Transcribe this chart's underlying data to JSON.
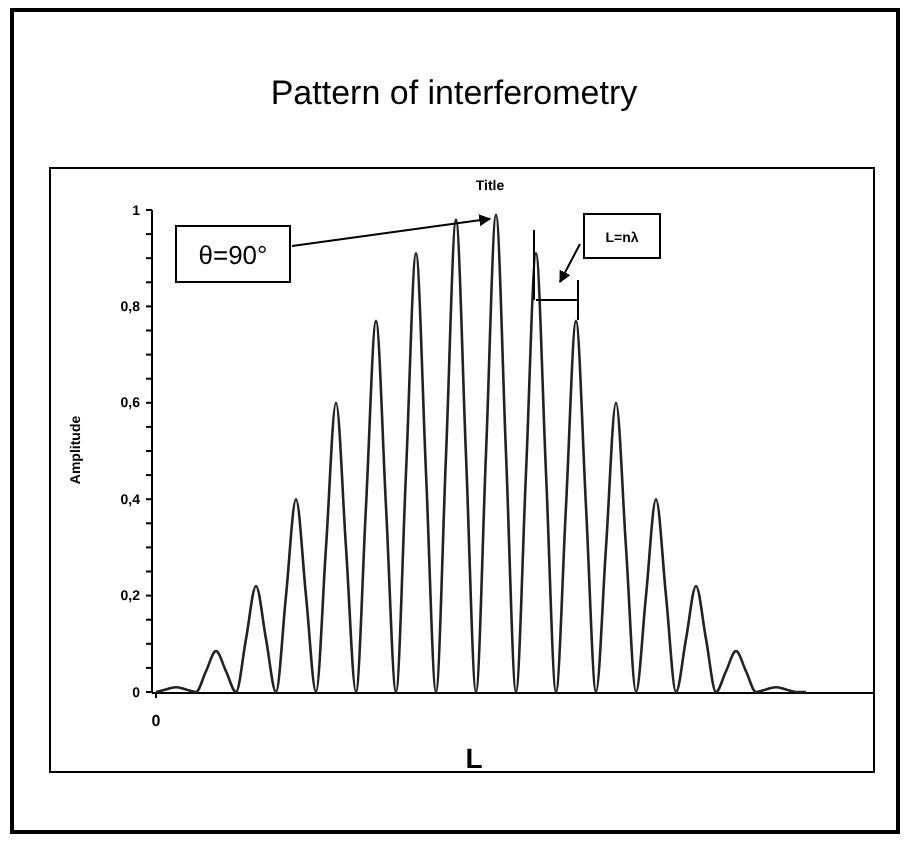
{
  "chart_data": {
    "type": "line",
    "title": "Pattern of interferometry",
    "subtitle": "Title",
    "xlabel": "L",
    "ylabel": "Amplitude",
    "annotations": [
      "θ=90°",
      "L=nλ"
    ],
    "categories": [
      "0",
      null,
      null,
      null,
      null,
      null,
      null,
      null,
      null,
      null,
      null,
      null,
      null,
      null,
      null,
      null,
      null,
      null,
      null,
      null,
      null,
      null,
      null,
      null,
      null,
      null,
      null,
      null,
      null,
      null,
      null,
      null,
      null,
      null,
      null,
      null,
      null,
      null,
      null,
      null,
      null,
      null,
      null,
      null,
      null,
      null,
      null,
      null,
      null,
      null,
      null,
      null,
      null,
      null,
      null,
      null,
      null,
      null,
      null,
      null,
      null,
      null,
      null,
      null,
      null,
      null,
      null,
      null,
      null,
      null,
      null,
      null,
      null
    ],
    "series": [
      {
        "color": "#222222",
        "values": [
          0,
          0.005,
          0.01,
          0.005,
          0,
          0.043,
          0.085,
          0.043,
          0,
          0.11,
          0.22,
          0.11,
          0,
          0.2,
          0.4,
          0.2,
          0,
          0.3,
          0.6,
          0.3,
          0,
          0.385,
          0.77,
          0.385,
          0,
          0.455,
          0.91,
          0.455,
          0,
          0.49,
          0.98,
          0.49,
          0,
          0.495,
          0.99,
          0.495,
          0,
          0.455,
          0.91,
          0.455,
          0,
          0.385,
          0.77,
          0.385,
          0,
          0.3,
          0.6,
          0.3,
          0,
          0.2,
          0.4,
          0.2,
          0,
          0.11,
          0.22,
          0.11,
          0,
          0.043,
          0.085,
          0.043,
          0,
          0.005,
          0.01,
          0.005,
          0,
          0,
          null,
          null,
          null,
          null,
          null,
          null,
          null
        ]
      }
    ],
    "ylim": [
      0,
      1
    ],
    "yticks": [
      0,
      {
        "value": 0.05,
        "label": null
      },
      {
        "value": 0.1,
        "label": null
      },
      {
        "value": 0.15,
        "label": null
      },
      {
        "value": 0.2,
        "label": "0,2"
      },
      {
        "value": 0.25,
        "label": null
      },
      {
        "value": 0.3,
        "label": null
      },
      {
        "value": 0.35,
        "label": null
      },
      {
        "value": 0.4,
        "label": "0,4"
      },
      {
        "value": 0.45,
        "label": null
      },
      {
        "value": 0.5,
        "label": null
      },
      {
        "value": 0.55,
        "label": null
      },
      {
        "value": 0.6,
        "label": "0,6"
      },
      {
        "value": 0.65,
        "label": null
      },
      {
        "value": 0.7,
        "label": null
      },
      {
        "value": 0.75,
        "label": null
      },
      {
        "value": 0.8,
        "label": "0,8"
      },
      {
        "value": 0.85,
        "label": null
      },
      {
        "value": 0.9,
        "label": null
      },
      {
        "value": 0.95,
        "label": null
      },
      1
    ],
    "marker": "none",
    "line_style": "solid"
  }
}
